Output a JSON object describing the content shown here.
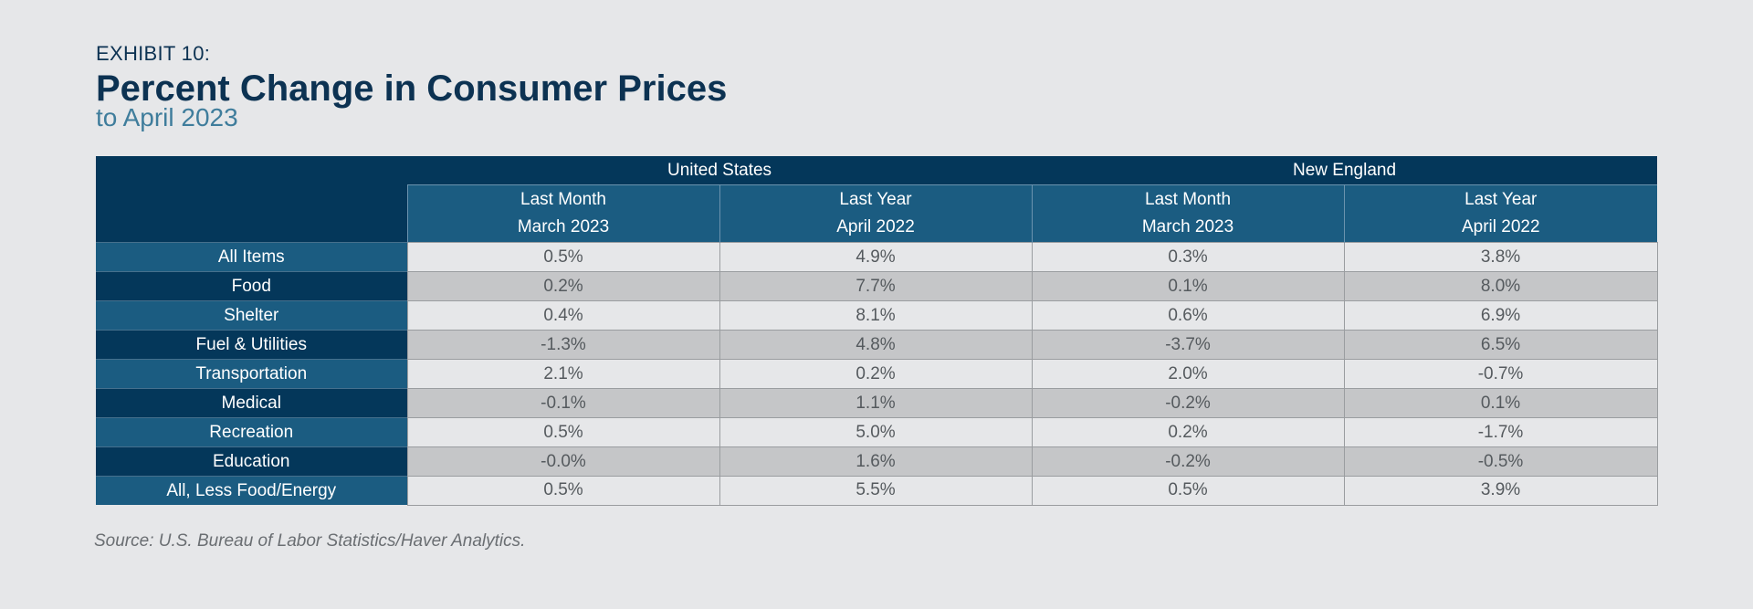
{
  "exhibit_label": "EXHIBIT 10:",
  "title": "Percent Change in Consumer Prices",
  "subtitle": "to April 2023",
  "source": "Source: U.S. Bureau of Labor Statistics/Haver Analytics.",
  "colors": {
    "background": "#e6e7e9",
    "header_dark": "#04375a",
    "header_mid": "#1b5c81",
    "row_light": "#e6e7e9",
    "row_dark": "#c5c6c8",
    "title_color": "#0c3252",
    "subtitle_color": "#3f7d9c"
  },
  "chart_data": {
    "type": "table",
    "title": "Percent Change in Consumer Prices",
    "subtitle": "to April 2023",
    "column_groups": [
      "United States",
      "New England"
    ],
    "columns": [
      {
        "group": "United States",
        "line1": "Last Month",
        "line2": "March 2023"
      },
      {
        "group": "United States",
        "line1": "Last Year",
        "line2": "April 2022"
      },
      {
        "group": "New England",
        "line1": "Last Month",
        "line2": "March 2023"
      },
      {
        "group": "New England",
        "line1": "Last Year",
        "line2": "April 2022"
      }
    ],
    "rows": [
      {
        "label": "All Items",
        "values": [
          "0.5%",
          "4.9%",
          "0.3%",
          "3.8%"
        ]
      },
      {
        "label": "Food",
        "values": [
          "0.2%",
          "7.7%",
          "0.1%",
          "8.0%"
        ]
      },
      {
        "label": "Shelter",
        "values": [
          "0.4%",
          "8.1%",
          "0.6%",
          "6.9%"
        ]
      },
      {
        "label": "Fuel & Utilities",
        "values": [
          "-1.3%",
          "4.8%",
          "-3.7%",
          "6.5%"
        ]
      },
      {
        "label": "Transportation",
        "values": [
          "2.1%",
          "0.2%",
          "2.0%",
          "-0.7%"
        ]
      },
      {
        "label": "Medical",
        "values": [
          "-0.1%",
          "1.1%",
          "-0.2%",
          "0.1%"
        ]
      },
      {
        "label": "Recreation",
        "values": [
          "0.5%",
          "5.0%",
          "0.2%",
          "-1.7%"
        ]
      },
      {
        "label": "Education",
        "values": [
          "-0.0%",
          "1.6%",
          "-0.2%",
          "-0.5%"
        ]
      },
      {
        "label": "All, Less Food/Energy",
        "values": [
          "0.5%",
          "5.5%",
          "0.5%",
          "3.9%"
        ]
      }
    ]
  }
}
